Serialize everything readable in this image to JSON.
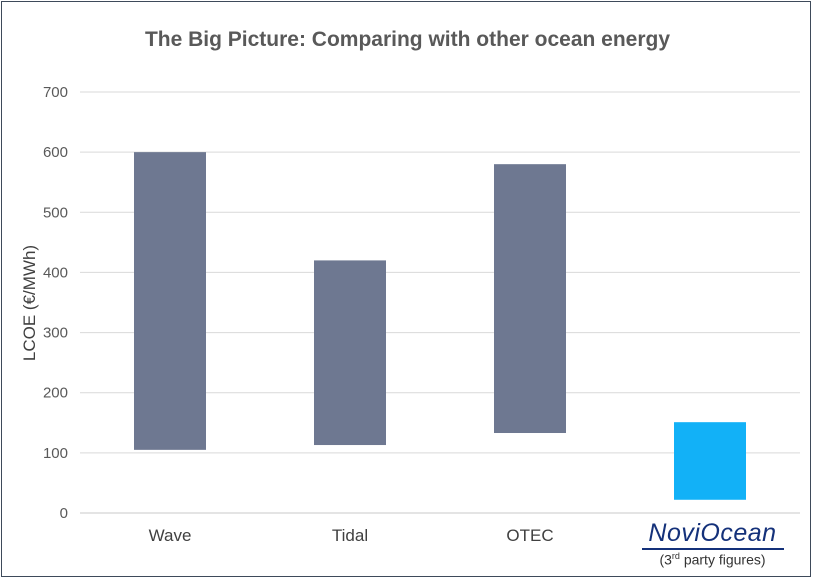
{
  "chart_data": {
    "type": "bar",
    "title": "The Big Picture: Comparing with other ocean energy",
    "ylabel": "LCOE (€/MWh)",
    "xlabel": "",
    "ylim": [
      0,
      700
    ],
    "yticks": [
      0,
      100,
      200,
      300,
      400,
      500,
      600,
      700
    ],
    "grid": true,
    "categories": [
      "Wave",
      "Tidal",
      "OTEC",
      "NoviOcean"
    ],
    "ranges": [
      {
        "category": "Wave",
        "low": 105,
        "high": 600,
        "color": "#6e7891"
      },
      {
        "category": "Tidal",
        "low": 113,
        "high": 420,
        "color": "#6e7891"
      },
      {
        "category": "OTEC",
        "low": 133,
        "high": 580,
        "color": "#6e7891"
      },
      {
        "category": "NoviOcean",
        "low": 22,
        "high": 151,
        "color": "#12b1f7"
      }
    ],
    "annotations": {
      "brand_label": "NoviOcean",
      "brand_note_prefix": "(3",
      "brand_note_sup": "rd",
      "brand_note_suffix": " party figures)"
    }
  }
}
